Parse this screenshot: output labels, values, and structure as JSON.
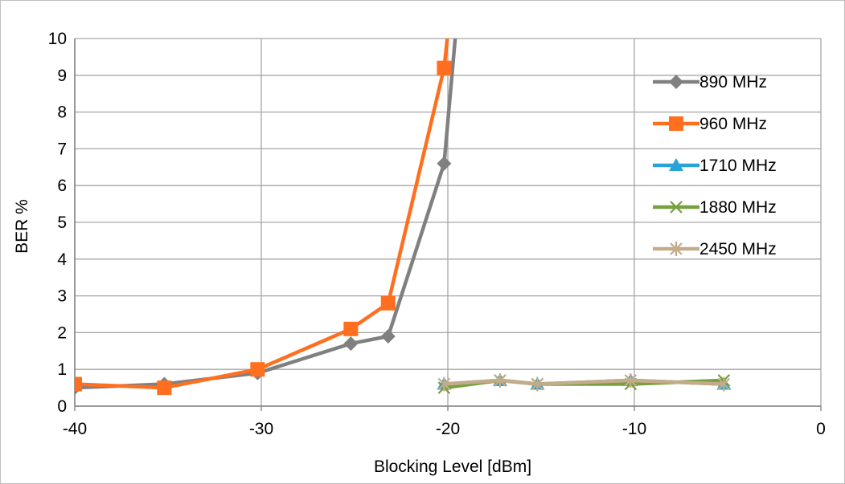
{
  "chart_data": {
    "type": "line",
    "title": "",
    "xlabel": "Blocking Level [dBm]",
    "ylabel": "BER %",
    "xlim": [
      -40,
      0
    ],
    "ylim": [
      0,
      10
    ],
    "x_ticks": [
      -40,
      -30,
      -20,
      -10,
      0
    ],
    "y_ticks": [
      0,
      1,
      2,
      3,
      4,
      5,
      6,
      7,
      8,
      9,
      10
    ],
    "grid": true,
    "legend_position": "right",
    "series": [
      {
        "name": "890 MHz",
        "color": "#808080",
        "marker": "diamond",
        "x": [
          -40,
          -35.2,
          -30.2,
          -25.2,
          -23.2,
          -20.2,
          -19.5
        ],
        "y": [
          0.5,
          0.6,
          0.9,
          1.7,
          1.9,
          6.6,
          10.6
        ]
      },
      {
        "name": "960 MHz",
        "color": "#ff6f1f",
        "marker": "square",
        "x": [
          -40,
          -35.2,
          -30.2,
          -25.2,
          -23.2,
          -20.2,
          -19.9
        ],
        "y": [
          0.6,
          0.5,
          1.0,
          2.1,
          2.8,
          9.2,
          10.6
        ]
      },
      {
        "name": "1710 MHz",
        "color": "#29a3d6",
        "marker": "triangle",
        "x": [
          -20.2,
          -17.2,
          -15.2,
          -10.2,
          -5.2
        ],
        "y": [
          0.6,
          0.7,
          0.6,
          0.7,
          0.6
        ]
      },
      {
        "name": "1880 MHz",
        "color": "#77a040",
        "marker": "x",
        "x": [
          -20.2,
          -17.2,
          -15.2,
          -10.2,
          -5.2
        ],
        "y": [
          0.5,
          0.7,
          0.6,
          0.6,
          0.7
        ]
      },
      {
        "name": "2450 MHz",
        "color": "#c4ac8a",
        "marker": "star",
        "x": [
          -20.2,
          -17.2,
          -15.2,
          -10.2,
          -5.2
        ],
        "y": [
          0.6,
          0.7,
          0.6,
          0.7,
          0.6
        ]
      }
    ]
  }
}
